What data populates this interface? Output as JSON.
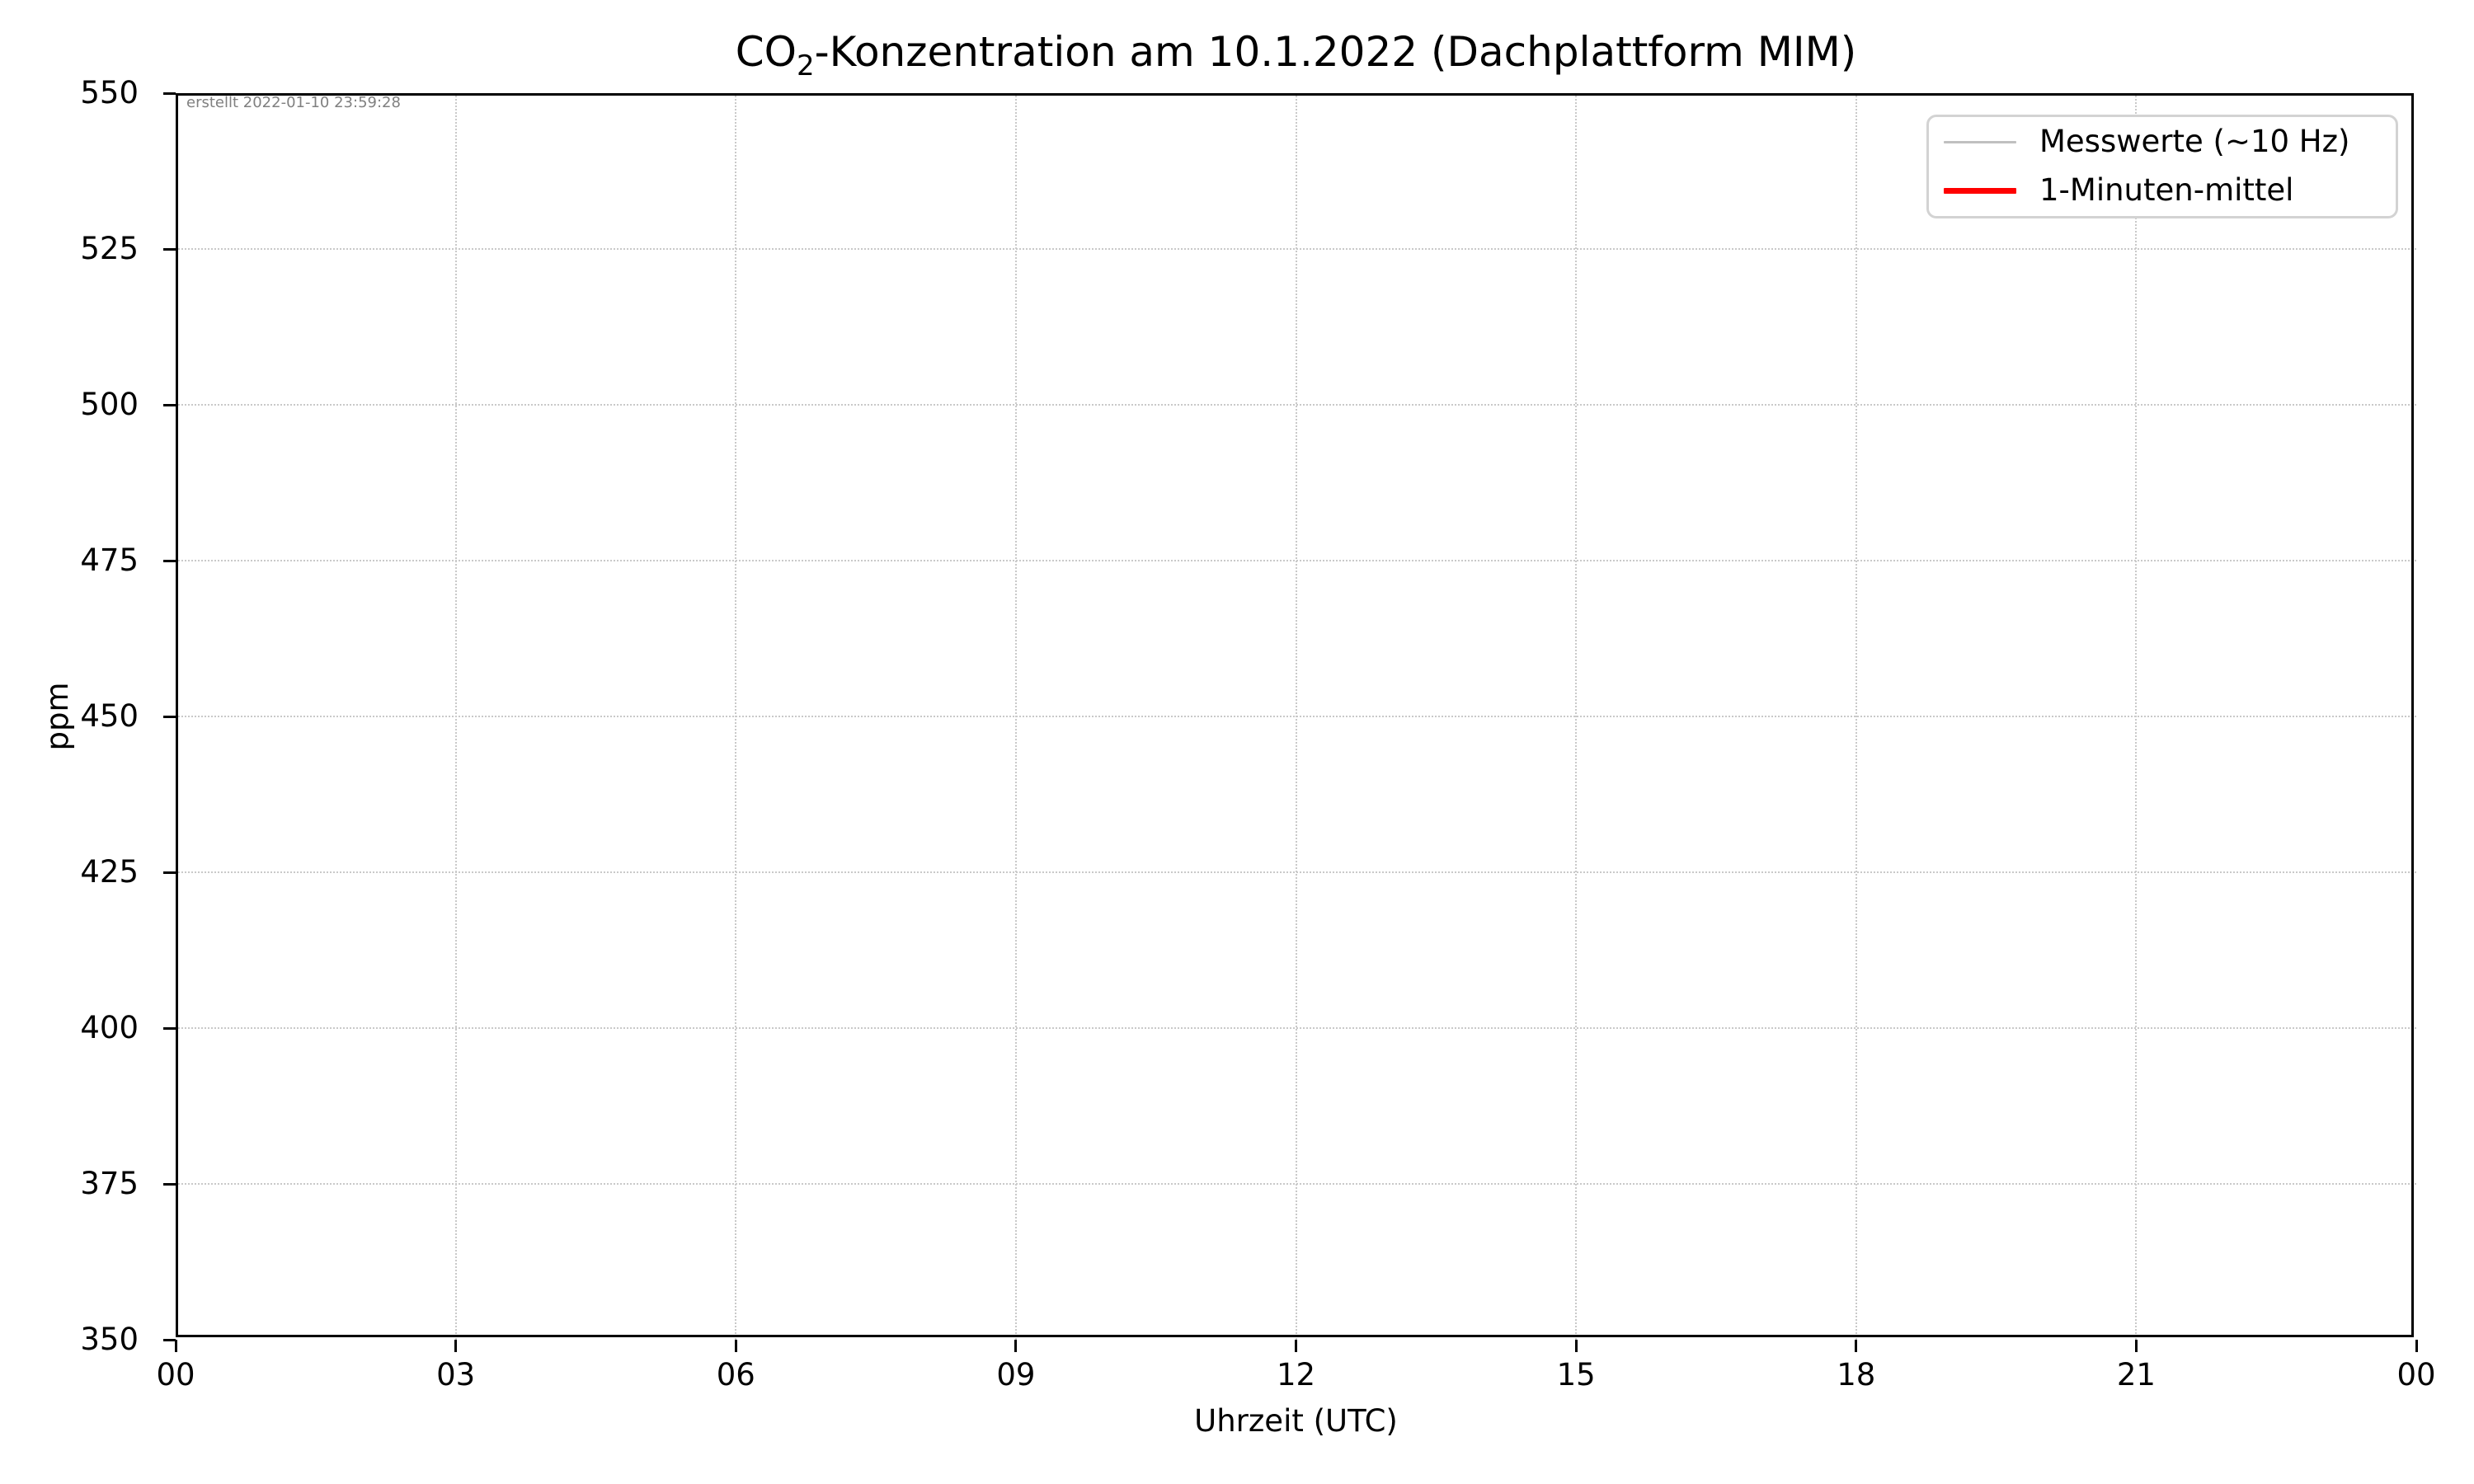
{
  "title": {
    "prefix": "CO",
    "subscript": "2",
    "suffix": "-Konzentration am 10.1.2022 (Dachplattform MIM)"
  },
  "annotation": {
    "created": "erstellt 2022-01-10 23:59:28"
  },
  "axes": {
    "x_label": "Uhrzeit (UTC)",
    "y_label": "ppm"
  },
  "legend": {
    "position": "upper right",
    "entries": [
      {
        "label": "Messwerte (~10 Hz)",
        "color": "#c0c0c0",
        "style": "thin-line"
      },
      {
        "label": "1-Minuten-mittel",
        "color": "#ff0000",
        "style": "thick-line"
      }
    ]
  },
  "colors": {
    "spine": "#000000",
    "grid": "#c9c9c9",
    "legend_border": "#d3d3d3",
    "annotation_gray": "#808080",
    "measurement_line": "#c0c0c0",
    "mean_line": "#ff0000",
    "background": "#ffffff"
  },
  "chart_data": {
    "type": "line",
    "title": "CO₂-Konzentration am 10.1.2022 (Dachplattform MIM)",
    "xlabel": "Uhrzeit (UTC)",
    "ylabel": "ppm",
    "x_tick_labels": [
      "00",
      "03",
      "06",
      "09",
      "12",
      "15",
      "18",
      "21",
      "00"
    ],
    "x_tick_hours": [
      0,
      3,
      6,
      9,
      12,
      15,
      18,
      21,
      24
    ],
    "xlim_hours": [
      0,
      24
    ],
    "y_ticks": [
      350,
      375,
      400,
      425,
      450,
      475,
      500,
      525,
      550
    ],
    "ylim": [
      350,
      550
    ],
    "grid": {
      "visible": true,
      "style": "dotted",
      "color": "#c9c9c9"
    },
    "legend_position": "upper right",
    "series": [
      {
        "name": "Messwerte (~10 Hz)",
        "color": "#c0c0c0",
        "line_width": "thin",
        "x": [],
        "values": []
      },
      {
        "name": "1-Minuten-mittel",
        "color": "#ff0000",
        "line_width": "thick",
        "x": [],
        "values": []
      }
    ]
  }
}
